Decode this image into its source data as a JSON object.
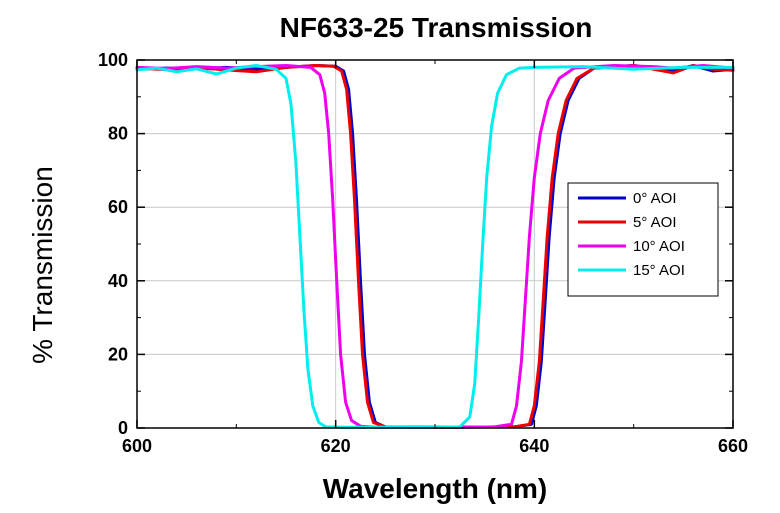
{
  "chart_data": {
    "type": "line",
    "title": "NF633-25 Transmission",
    "xlabel": "Wavelength (nm)",
    "ylabel": "% Transmission",
    "xlim": [
      600,
      660
    ],
    "ylim": [
      0,
      100
    ],
    "xticks": [
      600,
      620,
      640,
      660
    ],
    "yticks": [
      0,
      20,
      40,
      60,
      80,
      100
    ],
    "grid": true,
    "legend_position": "right",
    "series": [
      {
        "name": "0° AOI",
        "color": "#0000cc",
        "x": [
          600,
          603,
          606,
          609,
          612,
          615,
          618,
          620,
          620.8,
          621.3,
          621.7,
          622.1,
          622.5,
          622.9,
          623.4,
          624,
          625,
          630,
          638,
          639.7,
          640.2,
          640.7,
          641.1,
          641.5,
          642,
          642.6,
          643.4,
          644.5,
          646,
          650,
          654,
          656,
          658,
          660
        ],
        "y": [
          97.5,
          97.8,
          97.6,
          98,
          97.5,
          98,
          98.5,
          98.3,
          97,
          92,
          80,
          62,
          40,
          20,
          7,
          1.5,
          0.3,
          0.2,
          0.3,
          1,
          6,
          18,
          35,
          52,
          68,
          80,
          89,
          95,
          97.8,
          98.5,
          97,
          98.5,
          97,
          97.5
        ]
      },
      {
        "name": "5° AOI",
        "color": "#ee0000",
        "x": [
          600,
          603,
          606,
          609,
          612,
          615,
          618,
          619.8,
          620.6,
          621.1,
          621.5,
          621.9,
          622.3,
          622.7,
          623.2,
          623.8,
          625,
          630,
          638,
          639.5,
          640,
          640.5,
          640.9,
          641.3,
          641.8,
          642.4,
          643.2,
          644.3,
          646,
          650,
          654,
          656,
          658,
          660
        ],
        "y": [
          97.8,
          97.4,
          97.9,
          97.3,
          96.8,
          98,
          98.5,
          98.3,
          97,
          92,
          80,
          62,
          40,
          20,
          7,
          1.5,
          0.3,
          0.2,
          0.3,
          1,
          6,
          18,
          35,
          52,
          68,
          80,
          89,
          95,
          97.8,
          98.5,
          96.5,
          98.5,
          97.5,
          97.2
        ]
      },
      {
        "name": "10° AOI",
        "color": "#ee00ee",
        "x": [
          600,
          603,
          606,
          609,
          612,
          615,
          617.5,
          618.4,
          618.9,
          619.3,
          619.7,
          620.1,
          620.5,
          621,
          621.6,
          622.5,
          624,
          630,
          636,
          637.7,
          638.2,
          638.7,
          639.1,
          639.5,
          640,
          640.6,
          641.4,
          642.5,
          644,
          648,
          652,
          654,
          657,
          660
        ],
        "y": [
          98,
          97.7,
          98.2,
          97.8,
          98.2,
          98.5,
          98,
          96,
          91,
          80,
          62,
          40,
          20,
          7,
          2,
          0.5,
          0.2,
          0.2,
          0.3,
          1,
          6,
          18,
          35,
          52,
          68,
          80,
          89,
          95,
          97.8,
          98.5,
          98.2,
          97.8,
          98.5,
          97.8
        ]
      },
      {
        "name": "15° AOI",
        "color": "#00eeee",
        "x": [
          600,
          602,
          604,
          606,
          608,
          610,
          612,
          614,
          615,
          615.5,
          616,
          616.4,
          616.8,
          617.2,
          617.7,
          618.3,
          619,
          620.5,
          630,
          632.5,
          633.5,
          634,
          634.4,
          634.8,
          635.2,
          635.7,
          636.3,
          637.2,
          638.5,
          640,
          645,
          650,
          655,
          660
        ],
        "y": [
          97.3,
          97.8,
          96.8,
          97.6,
          96.2,
          97.8,
          98.5,
          97.5,
          95,
          88,
          72,
          52,
          32,
          16,
          6,
          1.5,
          0.3,
          0.2,
          0.2,
          0.3,
          3,
          12,
          30,
          50,
          68,
          82,
          91,
          96,
          97.8,
          98,
          98.2,
          97.5,
          98,
          98
        ]
      }
    ]
  }
}
